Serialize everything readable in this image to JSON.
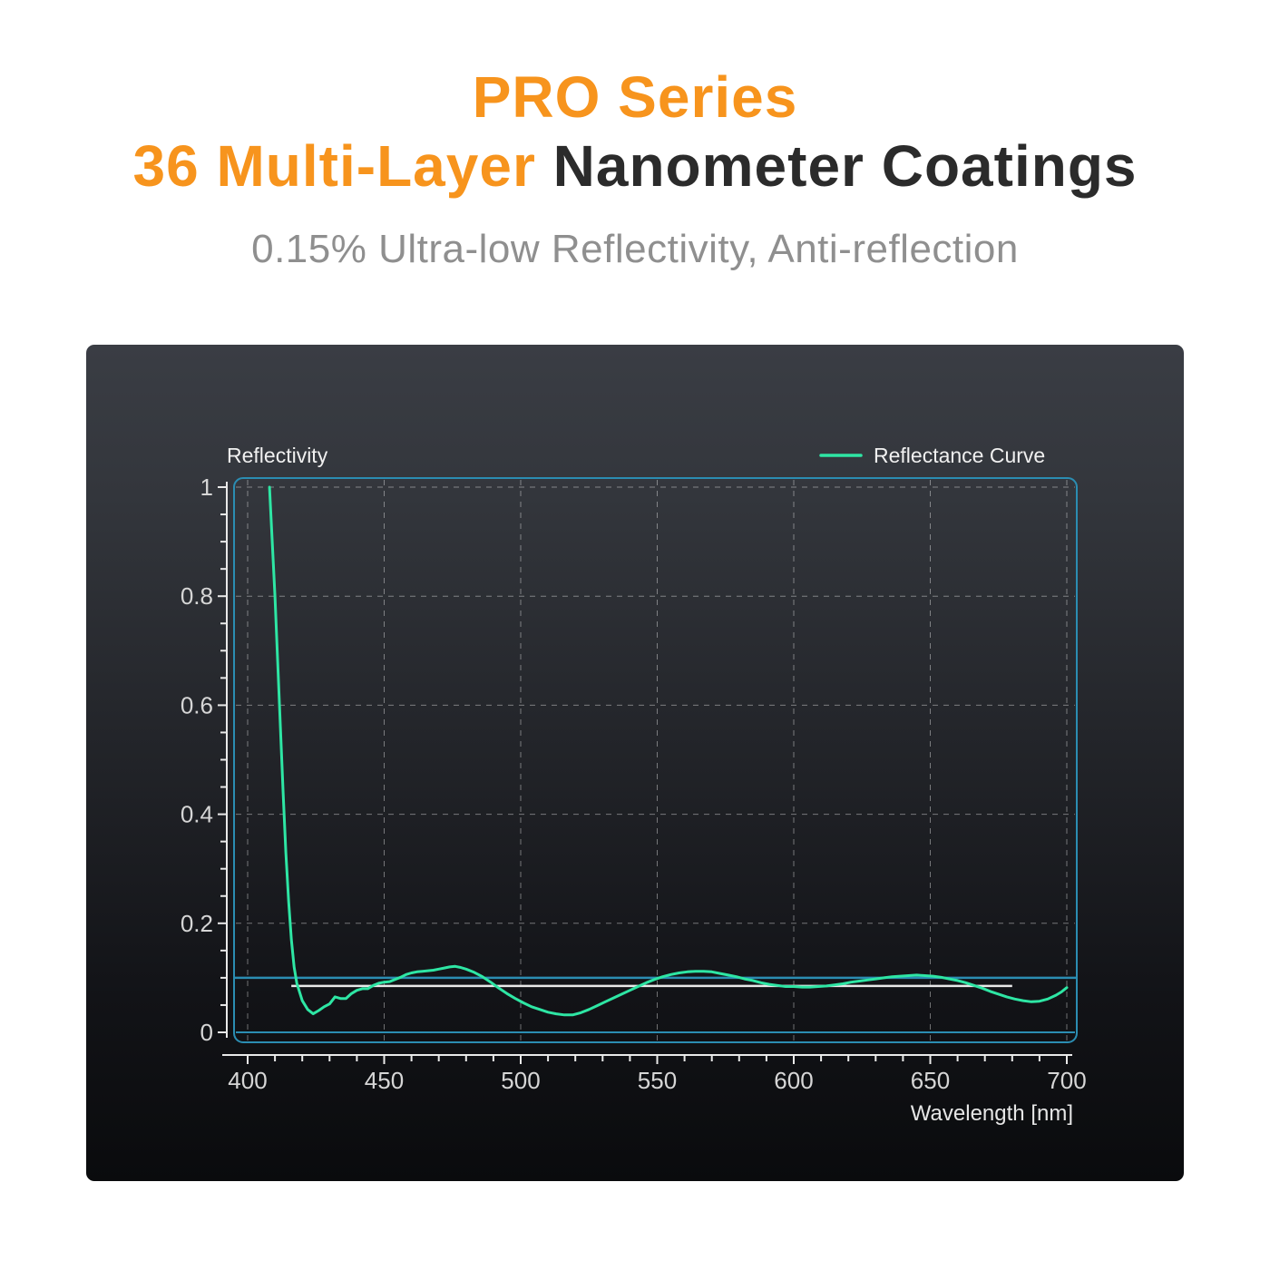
{
  "theme": {
    "page_bg": "#ffffff",
    "accent_orange": "#f7941d",
    "heading_dark": "#2b2b2b",
    "subtitle_gray": "#8f8f8f",
    "panel_top": "#3a3d44",
    "panel_bottom": "#0a0b0d"
  },
  "header": {
    "title_line1": "PRO Series",
    "title_line2_accent": "36 Multi-Layer",
    "title_line2_rest": "Nanometer Coatings",
    "subtitle": "0.15% Ultra-low Reflectivity, Anti-reflection"
  },
  "chart_data": {
    "type": "line",
    "title": "",
    "ylabel": "Reflectivity",
    "xlabel": "Wavelength [nm]",
    "xlim": [
      400,
      700
    ],
    "ylim": [
      0,
      1
    ],
    "x_ticks": [
      400,
      450,
      500,
      550,
      600,
      650,
      700
    ],
    "x_tick_labels": [
      "400",
      "450",
      "500",
      "550",
      "600",
      "650",
      "700"
    ],
    "y_ticks": [
      0,
      0.2,
      0.4,
      0.6,
      0.8,
      1
    ],
    "y_tick_labels": [
      "0",
      "0.2",
      "0.4",
      "0.6",
      "0.8",
      "1"
    ],
    "x_minor_step": 10,
    "y_minor_step": 0.05,
    "grid": "dashed",
    "legend": {
      "position": "top-right",
      "label": "Reflectance Curve"
    },
    "colors": {
      "frame": "#2b8db2",
      "grid": "#ffffff",
      "axis": "#e9e9e9",
      "tick_label": "#d6d6d6",
      "curve": "#2ee6a4",
      "reference_white": "#e9e9e9"
    },
    "series": [
      {
        "name": "Reflectance Curve",
        "color": "#2ee6a4",
        "points": [
          [
            408,
            1.0
          ],
          [
            409,
            0.9
          ],
          [
            410,
            0.8
          ],
          [
            411,
            0.68
          ],
          [
            412,
            0.56
          ],
          [
            413,
            0.44
          ],
          [
            414,
            0.33
          ],
          [
            415,
            0.24
          ],
          [
            416,
            0.17
          ],
          [
            417,
            0.12
          ],
          [
            418,
            0.09
          ],
          [
            420,
            0.058
          ],
          [
            422,
            0.042
          ],
          [
            424,
            0.034
          ],
          [
            426,
            0.04
          ],
          [
            428,
            0.047
          ],
          [
            430,
            0.052
          ],
          [
            432,
            0.065
          ],
          [
            434,
            0.062
          ],
          [
            436,
            0.062
          ],
          [
            438,
            0.071
          ],
          [
            440,
            0.077
          ],
          [
            442,
            0.08
          ],
          [
            444,
            0.08
          ],
          [
            446,
            0.086
          ],
          [
            448,
            0.09
          ],
          [
            450,
            0.092
          ],
          [
            452,
            0.093
          ],
          [
            454,
            0.097
          ],
          [
            456,
            0.101
          ],
          [
            458,
            0.106
          ],
          [
            460,
            0.109
          ],
          [
            462,
            0.111
          ],
          [
            464,
            0.112
          ],
          [
            466,
            0.113
          ],
          [
            468,
            0.114
          ],
          [
            470,
            0.116
          ],
          [
            472,
            0.118
          ],
          [
            474,
            0.12
          ],
          [
            476,
            0.121
          ],
          [
            478,
            0.119
          ],
          [
            480,
            0.116
          ],
          [
            483,
            0.11
          ],
          [
            486,
            0.102
          ],
          [
            489,
            0.092
          ],
          [
            492,
            0.081
          ],
          [
            495,
            0.071
          ],
          [
            498,
            0.062
          ],
          [
            501,
            0.054
          ],
          [
            504,
            0.047
          ],
          [
            507,
            0.042
          ],
          [
            510,
            0.037
          ],
          [
            513,
            0.034
          ],
          [
            516,
            0.032
          ],
          [
            519,
            0.032
          ],
          [
            522,
            0.036
          ],
          [
            525,
            0.042
          ],
          [
            528,
            0.049
          ],
          [
            531,
            0.056
          ],
          [
            534,
            0.063
          ],
          [
            537,
            0.07
          ],
          [
            540,
            0.077
          ],
          [
            543,
            0.084
          ],
          [
            546,
            0.091
          ],
          [
            549,
            0.097
          ],
          [
            552,
            0.102
          ],
          [
            555,
            0.106
          ],
          [
            558,
            0.109
          ],
          [
            561,
            0.111
          ],
          [
            564,
            0.112
          ],
          [
            567,
            0.112
          ],
          [
            570,
            0.111
          ],
          [
            573,
            0.108
          ],
          [
            576,
            0.105
          ],
          [
            579,
            0.102
          ],
          [
            582,
            0.098
          ],
          [
            585,
            0.095
          ],
          [
            588,
            0.091
          ],
          [
            591,
            0.088
          ],
          [
            594,
            0.086
          ],
          [
            597,
            0.084
          ],
          [
            600,
            0.084
          ],
          [
            603,
            0.083
          ],
          [
            606,
            0.083
          ],
          [
            609,
            0.084
          ],
          [
            612,
            0.085
          ],
          [
            615,
            0.087
          ],
          [
            618,
            0.089
          ],
          [
            621,
            0.092
          ],
          [
            624,
            0.094
          ],
          [
            627,
            0.096
          ],
          [
            630,
            0.098
          ],
          [
            633,
            0.1
          ],
          [
            636,
            0.102
          ],
          [
            639,
            0.103
          ],
          [
            642,
            0.104
          ],
          [
            645,
            0.105
          ],
          [
            648,
            0.104
          ],
          [
            651,
            0.103
          ],
          [
            654,
            0.101
          ],
          [
            657,
            0.098
          ],
          [
            660,
            0.095
          ],
          [
            663,
            0.091
          ],
          [
            666,
            0.086
          ],
          [
            669,
            0.081
          ],
          [
            672,
            0.075
          ],
          [
            675,
            0.07
          ],
          [
            678,
            0.065
          ],
          [
            681,
            0.061
          ],
          [
            684,
            0.058
          ],
          [
            687,
            0.056
          ],
          [
            690,
            0.057
          ],
          [
            693,
            0.061
          ],
          [
            696,
            0.068
          ],
          [
            698,
            0.074
          ],
          [
            700,
            0.082
          ]
        ]
      }
    ],
    "reference_lines": [
      {
        "label": "reflectivity-0.1-level",
        "y": 0.1,
        "color": "#2b8db2",
        "span": "plot",
        "width": 2.5
      },
      {
        "label": "mean-reflectivity-level",
        "y": 0.085,
        "color": "#e9e9e9",
        "x_from": 416,
        "x_to": 680,
        "width": 2.5
      }
    ]
  }
}
